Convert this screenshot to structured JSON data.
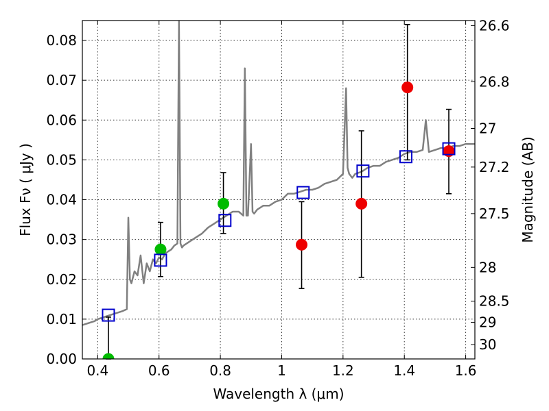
{
  "chart_data": {
    "type": "scatter",
    "title": "",
    "xlabel": "Wavelength  λ (μm)",
    "ylabel": "Flux  Fν  ( μJy )",
    "y2label": "Magnitude (AB)",
    "xlim": [
      0.35,
      1.63
    ],
    "ylim": [
      0.0,
      0.085
    ],
    "grid": true,
    "x_ticks": [
      0.4,
      0.6,
      0.8,
      1.0,
      1.2,
      1.4,
      1.6
    ],
    "x_tick_labels": [
      "0.4",
      "0.6",
      "0.8",
      "1",
      "1.2",
      "1.4",
      "1.6"
    ],
    "y_ticks": [
      0.0,
      0.01,
      0.02,
      0.03,
      0.04,
      0.05,
      0.06,
      0.07,
      0.08
    ],
    "y_tick_labels": [
      "0.00",
      "0.01",
      "0.02",
      "0.03",
      "0.04",
      "0.05",
      "0.06",
      "0.07",
      "0.08"
    ],
    "mag_ticks": [
      {
        "label": "26.6",
        "flux": 0.0837
      },
      {
        "label": "26.8",
        "flux": 0.0696
      },
      {
        "label": "27",
        "flux": 0.0579
      },
      {
        "label": "27.2",
        "flux": 0.0482
      },
      {
        "label": "27.5",
        "flux": 0.0365
      },
      {
        "label": "28",
        "flux": 0.023
      },
      {
        "label": "28.5",
        "flux": 0.0145
      },
      {
        "label": "29",
        "flux": 0.0092
      },
      {
        "label": "30",
        "flux": 0.0036
      }
    ],
    "colors": {
      "spectrum": "#808080",
      "model_box": "#0000cc",
      "green_point": "#00bb00",
      "red_point": "#ee0000",
      "errorbar": "#000000"
    },
    "series": [
      {
        "name": "model spectrum",
        "kind": "line",
        "x": [
          0.35,
          0.37,
          0.39,
          0.4,
          0.42,
          0.44,
          0.46,
          0.48,
          0.495,
          0.5,
          0.505,
          0.51,
          0.52,
          0.53,
          0.54,
          0.55,
          0.56,
          0.57,
          0.58,
          0.59,
          0.6,
          0.61,
          0.62,
          0.63,
          0.64,
          0.65,
          0.66,
          0.665,
          0.67,
          0.675,
          0.68,
          0.7,
          0.72,
          0.74,
          0.76,
          0.78,
          0.8,
          0.82,
          0.84,
          0.86,
          0.875,
          0.88,
          0.885,
          0.89,
          0.9,
          0.905,
          0.91,
          0.92,
          0.94,
          0.96,
          0.98,
          1.0,
          1.02,
          1.04,
          1.06,
          1.08,
          1.1,
          1.12,
          1.14,
          1.16,
          1.18,
          1.2,
          1.21,
          1.215,
          1.22,
          1.23,
          1.24,
          1.26,
          1.28,
          1.3,
          1.32,
          1.34,
          1.36,
          1.38,
          1.4,
          1.42,
          1.44,
          1.46,
          1.47,
          1.48,
          1.5,
          1.52,
          1.54,
          1.56,
          1.58,
          1.6,
          1.63
        ],
        "y": [
          0.0085,
          0.009,
          0.0095,
          0.01,
          0.0105,
          0.011,
          0.0115,
          0.012,
          0.0125,
          0.0355,
          0.02,
          0.019,
          0.022,
          0.021,
          0.026,
          0.019,
          0.024,
          0.022,
          0.025,
          0.024,
          0.0255,
          0.025,
          0.0265,
          0.027,
          0.0275,
          0.0285,
          0.029,
          0.085,
          0.029,
          0.028,
          0.0285,
          0.0295,
          0.0305,
          0.0315,
          0.033,
          0.034,
          0.035,
          0.036,
          0.037,
          0.037,
          0.036,
          0.073,
          0.036,
          0.036,
          0.054,
          0.037,
          0.0365,
          0.0375,
          0.0385,
          0.0385,
          0.0395,
          0.04,
          0.0415,
          0.0415,
          0.042,
          0.0425,
          0.0425,
          0.043,
          0.044,
          0.0445,
          0.045,
          0.0465,
          0.068,
          0.048,
          0.0465,
          0.0455,
          0.0465,
          0.047,
          0.048,
          0.0485,
          0.0485,
          0.0495,
          0.05,
          0.0505,
          0.0515,
          0.052,
          0.052,
          0.0525,
          0.06,
          0.052,
          0.0525,
          0.053,
          0.053,
          0.0535,
          0.0535,
          0.054,
          0.054
        ]
      },
      {
        "name": "model photometry",
        "kind": "open-square",
        "x": [
          0.435,
          0.605,
          0.815,
          1.07,
          1.265,
          1.405,
          1.545
        ],
        "y": [
          0.011,
          0.0248,
          0.0348,
          0.0418,
          0.0472,
          0.0508,
          0.0528
        ]
      },
      {
        "name": "observed (green)",
        "kind": "filled-circle",
        "x": [
          0.435,
          0.605,
          0.81
        ],
        "y": [
          0.0,
          0.0275,
          0.039
        ],
        "yerr_low": [
          0.0,
          0.0068,
          0.0075
        ],
        "yerr_high": [
          0.0105,
          0.0068,
          0.0078
        ]
      },
      {
        "name": "observed (red)",
        "kind": "filled-circle",
        "x": [
          1.065,
          1.26,
          1.41,
          1.545
        ],
        "y": [
          0.0287,
          0.039,
          0.0682,
          0.0522
        ],
        "yerr_low": [
          0.011,
          0.0185,
          0.0182,
          0.0107
        ],
        "yerr_high": [
          0.0108,
          0.0183,
          0.0158,
          0.0105
        ]
      }
    ]
  }
}
